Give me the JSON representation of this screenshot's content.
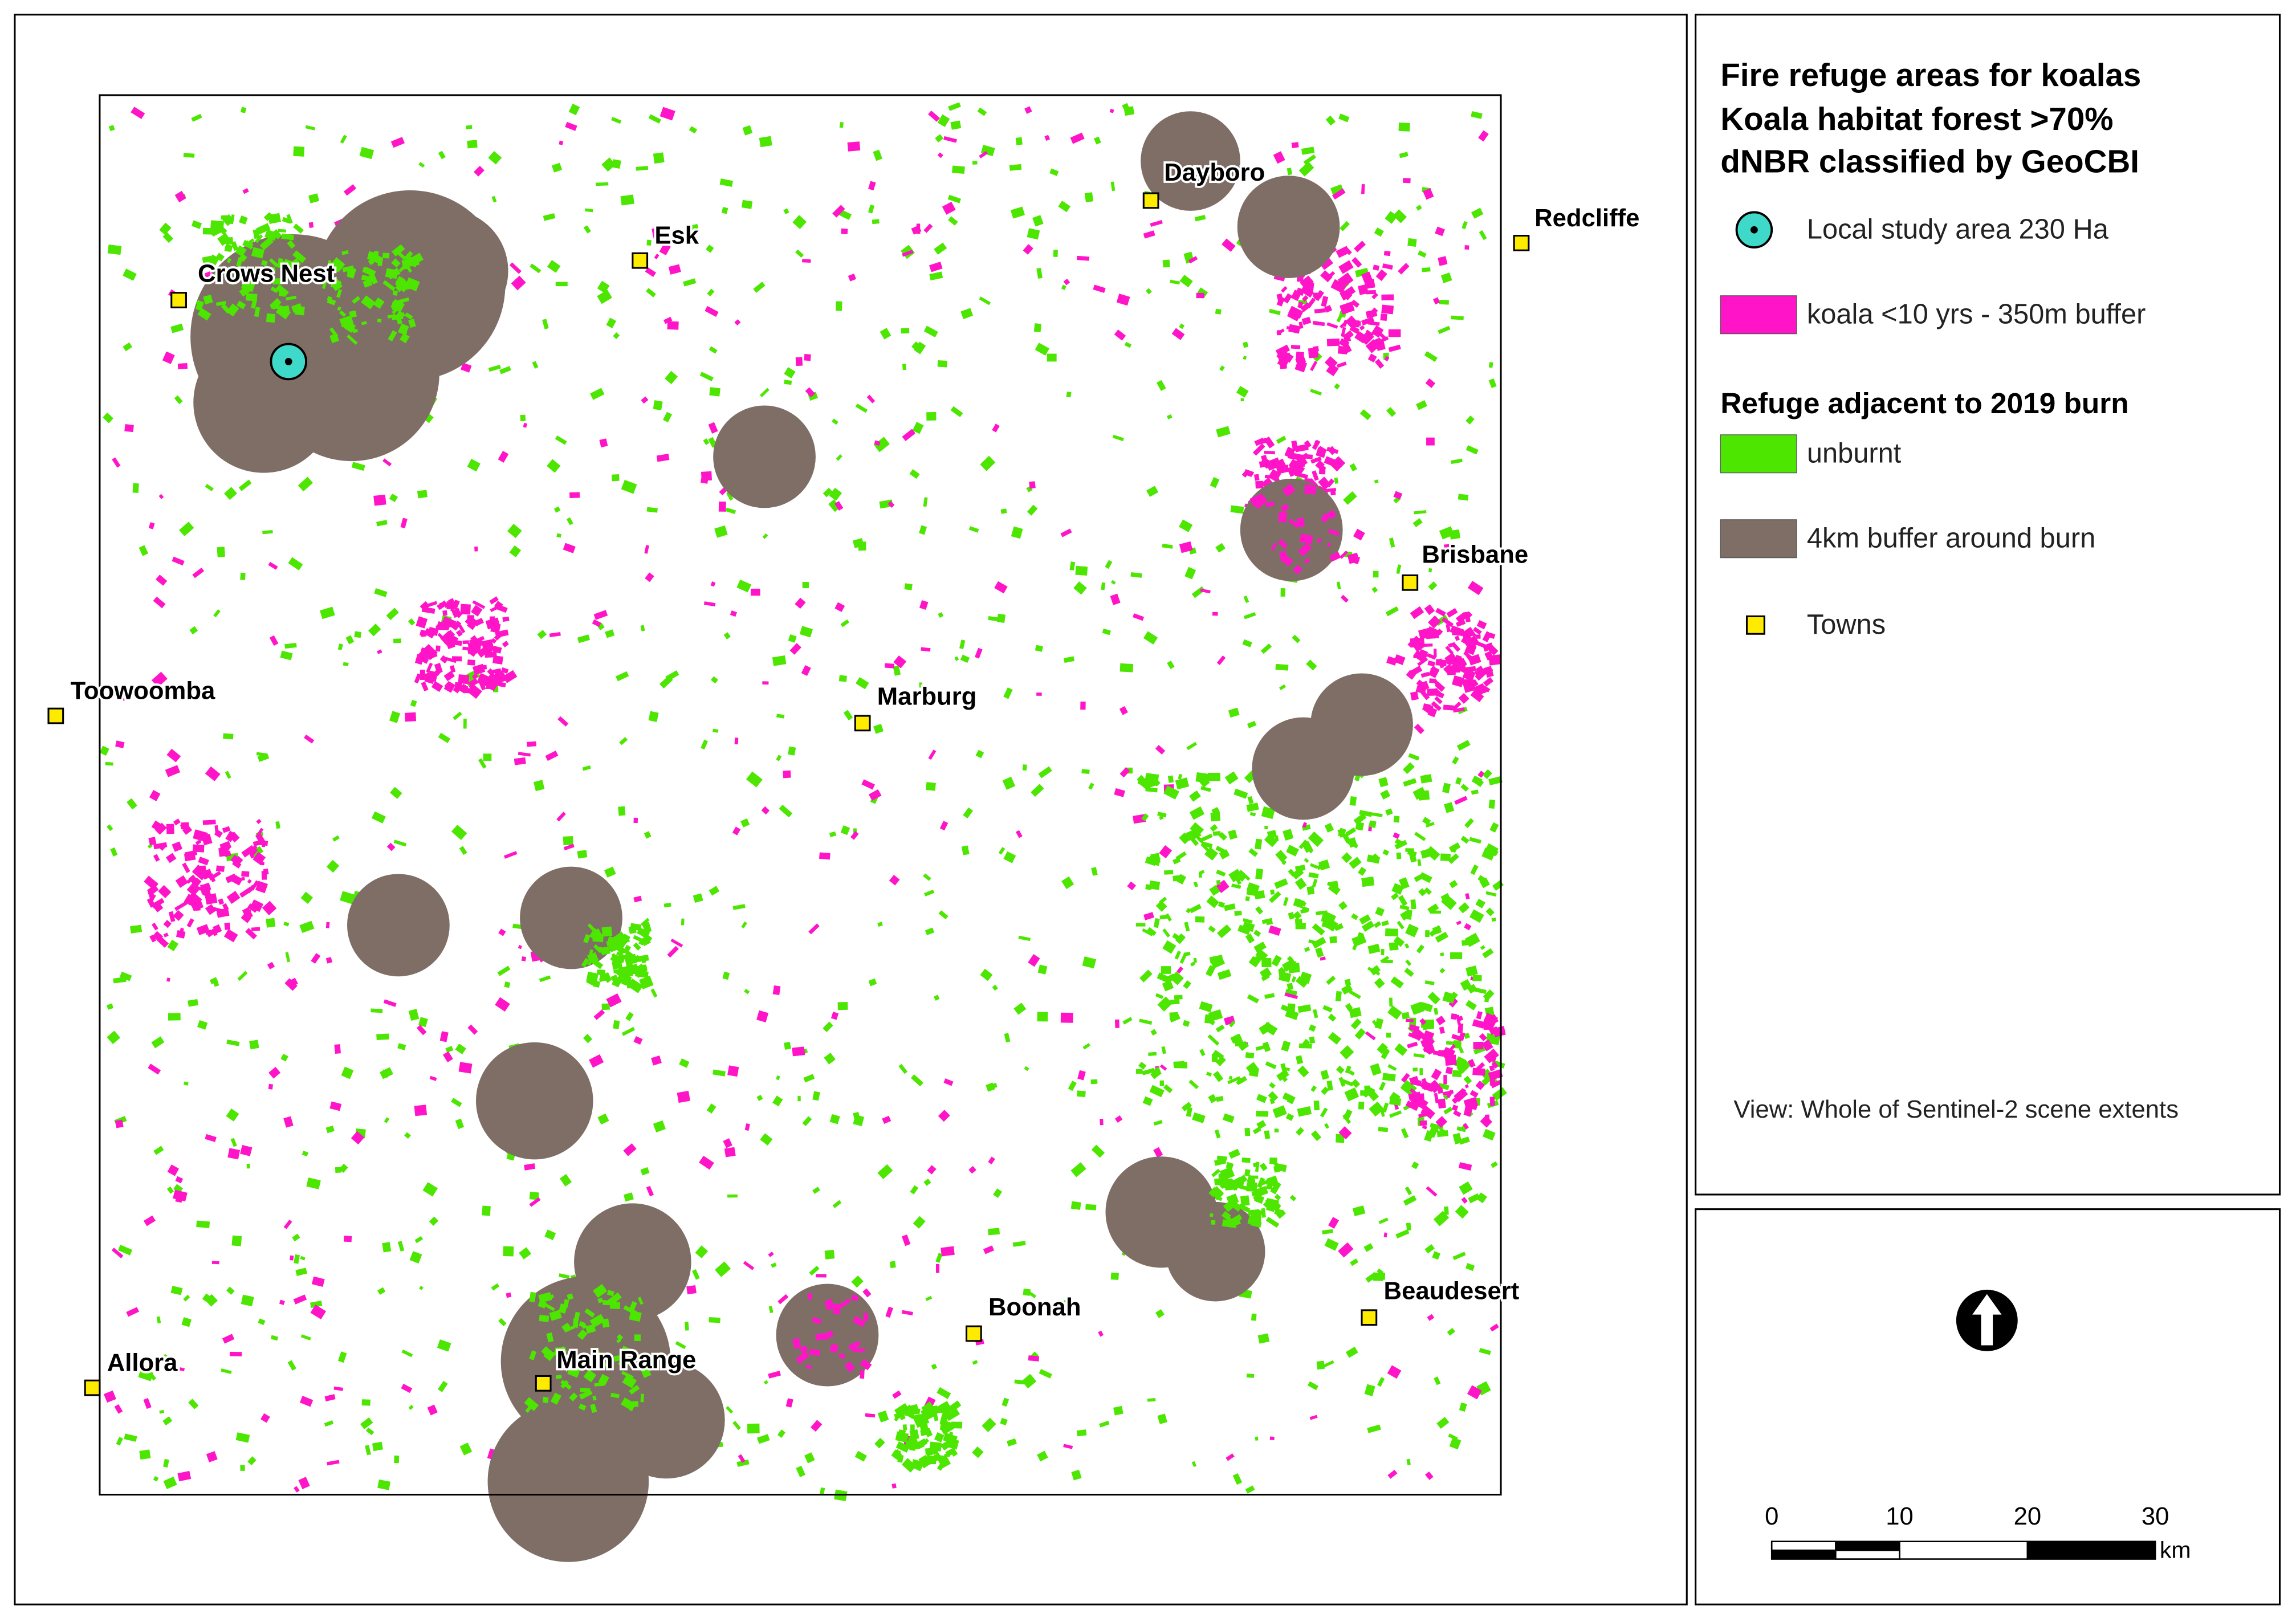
{
  "legend": {
    "title": [
      "Fire refuge areas for koalas",
      "Koala habitat forest >70%",
      "dNBR classified by GeoCBI"
    ],
    "items": [
      "Local study area 230 Ha",
      "koala <10 yrs - 350m buffer"
    ],
    "section": "Refuge adjacent to 2019 burn",
    "section_items": [
      "unburnt",
      "4km buffer around burn",
      "Towns"
    ],
    "view_note": "View: Whole of Sentinel-2 scene extents"
  },
  "towns": [
    "Crows Nest",
    "Esk",
    "Dayboro",
    "Redcliffe",
    "Brisbane",
    "Toowoomba",
    "Marburg",
    "Allora",
    "Main Range",
    "Boonah",
    "Beaudesert"
  ],
  "scale_bar": {
    "ticks": [
      0,
      10,
      20,
      30
    ],
    "unit": "km"
  }
}
